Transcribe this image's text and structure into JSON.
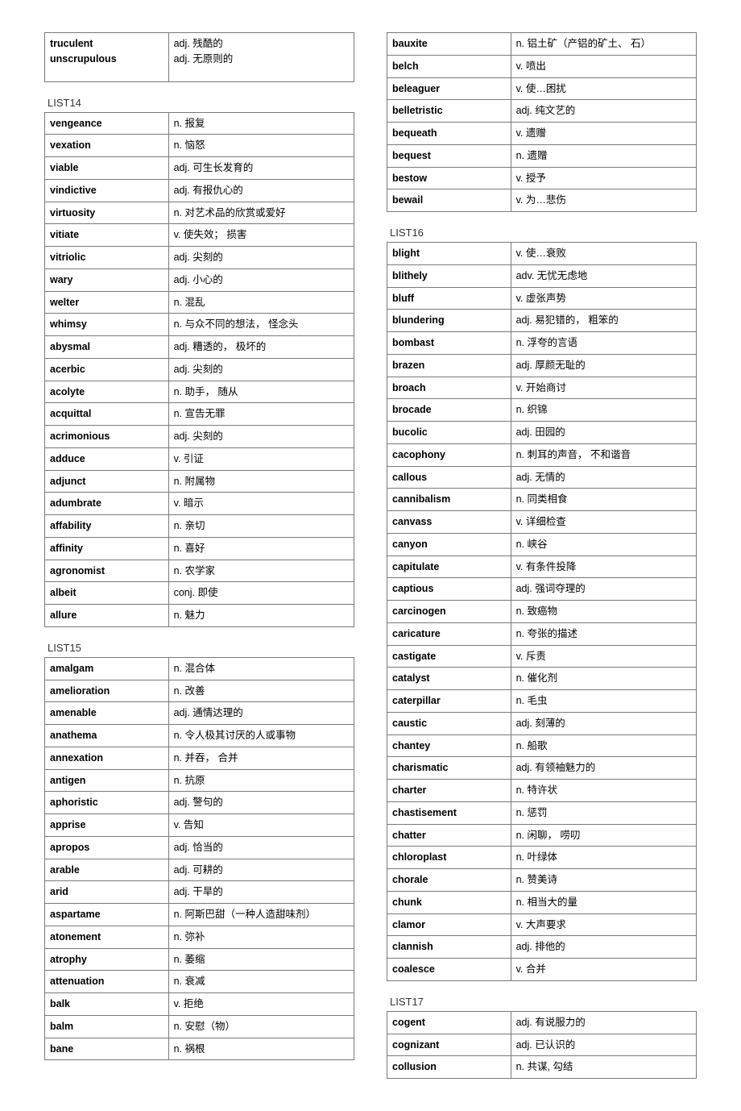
{
  "leftTop": {
    "rows": [
      {
        "word": "truculent",
        "def": "adj.  残酷的"
      },
      {
        "word": "unscrupulous",
        "def": "adj.  无原则的"
      }
    ]
  },
  "list14": {
    "title": "LIST14",
    "rows": [
      {
        "word": "vengeance",
        "def": "n.  报复"
      },
      {
        "word": "vexation",
        "def": "n.  恼怒"
      },
      {
        "word": "viable",
        "def": "adj.  可生长发育的"
      },
      {
        "word": "vindictive",
        "def": "adj.  有报仇心的"
      },
      {
        "word": "virtuosity",
        "def": "n.  对艺术品的欣赏或爱好"
      },
      {
        "word": "vitiate",
        "def": "v.  使失效；  损害"
      },
      {
        "word": "vitriolic",
        "def": "adj.  尖刻的"
      },
      {
        "word": "wary",
        "def": "adj.  小心的"
      },
      {
        "word": "welter",
        "def": "n.  混乱"
      },
      {
        "word": "whimsy",
        "def": "n.  与众不同的想法，  怪念头"
      },
      {
        "word": "abysmal",
        "def": "adj.  糟透的，  极坏的"
      },
      {
        "word": "acerbic",
        "def": "adj.  尖刻的"
      },
      {
        "word": "acolyte",
        "def": "n.  助手，  随从"
      },
      {
        "word": "acquittal",
        "def": "n.  宣告无罪"
      },
      {
        "word": "acrimonious",
        "def": "adj.  尖刻的"
      },
      {
        "word": "adduce",
        "def": "v.  引证"
      },
      {
        "word": "adjunct",
        "def": "n.  附属物"
      },
      {
        "word": "adumbrate",
        "def": "v.  暗示"
      },
      {
        "word": "affability",
        "def": "n.  亲切"
      },
      {
        "word": "affinity",
        "def": "n.  喜好"
      },
      {
        "word": "agronomist",
        "def": "n.  农学家"
      },
      {
        "word": "albeit",
        "def": "conj.  即使"
      },
      {
        "word": "allure",
        "def": "n.  魅力"
      }
    ]
  },
  "list15": {
    "title": "LIST15",
    "rows": [
      {
        "word": "amalgam",
        "def": "n.  混合体"
      },
      {
        "word": "amelioration",
        "def": "n.  改善"
      },
      {
        "word": "amenable",
        "def": "adj.  通情达理的"
      },
      {
        "word": "anathema",
        "def": "n.  令人极其讨厌的人或事物"
      },
      {
        "word": "annexation",
        "def": "n.  并吞，  合并"
      },
      {
        "word": "antigen",
        "def": "n.  抗原"
      },
      {
        "word": "aphoristic",
        "def": "adj.  警句的"
      },
      {
        "word": "apprise",
        "def": "v.  告知"
      },
      {
        "word": "apropos",
        "def": "adj.  恰当的"
      },
      {
        "word": "arable",
        "def": "adj.  可耕的"
      },
      {
        "word": "arid",
        "def": "adj.  干旱的"
      },
      {
        "word": "aspartame",
        "def": "n.  阿斯巴甜（一种人造甜味剂）"
      },
      {
        "word": "atonement",
        "def": "n.  弥补"
      },
      {
        "word": "atrophy",
        "def": "n.  萎缩"
      },
      {
        "word": "attenuation",
        "def": "n.  衰减"
      },
      {
        "word": "balk",
        "def": "v.  拒绝"
      },
      {
        "word": "balm",
        "def": "n.  安慰（物）"
      },
      {
        "word": "bane",
        "def": "n.  祸根"
      }
    ]
  },
  "rightTop": {
    "rows": [
      {
        "word": "bauxite",
        "def": "n.  铝土矿（产铝的矿土、 石）"
      },
      {
        "word": "belch",
        "def": "v.  喷出"
      },
      {
        "word": "beleaguer",
        "def": "v.  使…困扰"
      },
      {
        "word": "belletristic",
        "def": "adj.  纯文艺的"
      },
      {
        "word": "bequeath",
        "def": "v.  遗赠"
      },
      {
        "word": "bequest",
        "def": "n.  遗赠"
      },
      {
        "word": "bestow",
        "def": "v.  授予"
      },
      {
        "word": "bewail",
        "def": "v.  为…悲伤"
      }
    ]
  },
  "list16": {
    "title": "LIST16",
    "rows": [
      {
        "word": "blight",
        "def": "v.  使…衰败"
      },
      {
        "word": "blithely",
        "def": "adv.  无忧无虑地"
      },
      {
        "word": "bluff",
        "def": "v.  虚张声势"
      },
      {
        "word": "blundering",
        "def": "adj.  易犯错的，  粗笨的"
      },
      {
        "word": "bombast",
        "def": "n.  浮夸的言语"
      },
      {
        "word": "brazen",
        "def": "adj.  厚颜无耻的"
      },
      {
        "word": "broach",
        "def": "v.  开始商讨"
      },
      {
        "word": "brocade",
        "def": "n.  织锦"
      },
      {
        "word": "bucolic",
        "def": "adj.  田园的"
      },
      {
        "word": "cacophony",
        "def": "n.  刺耳的声音，  不和谐音"
      },
      {
        "word": "callous",
        "def": "adj.  无情的"
      },
      {
        "word": "cannibalism",
        "def": "n.  同类相食"
      },
      {
        "word": "canvass",
        "def": "v.  详细检查"
      },
      {
        "word": "canyon",
        "def": "n.  峡谷"
      },
      {
        "word": "capitulate",
        "def": "v.  有条件投降"
      },
      {
        "word": "captious",
        "def": "adj.  强词夺理的"
      },
      {
        "word": "carcinogen",
        "def": "n.  致癌物"
      },
      {
        "word": "caricature",
        "def": "n.  夸张的描述"
      },
      {
        "word": "castigate",
        "def": "v.  斥责"
      },
      {
        "word": "catalyst",
        "def": "n.  催化剂"
      },
      {
        "word": "caterpillar",
        "def": "n.  毛虫"
      },
      {
        "word": "caustic",
        "def": "adj.  刻薄的"
      },
      {
        "word": "chantey",
        "def": "n.  船歌"
      },
      {
        "word": "charismatic",
        "def": "adj.  有领袖魅力的"
      },
      {
        "word": "charter",
        "def": "n.  特许状"
      },
      {
        "word": "chastisement",
        "def": "n.  惩罚"
      },
      {
        "word": "chatter",
        "def": "n.  闲聊，  唠叨"
      },
      {
        "word": "chloroplast",
        "def": "n.  叶绿体"
      },
      {
        "word": "chorale",
        "def": "n.  赞美诗"
      },
      {
        "word": "chunk",
        "def": "n.  相当大的量"
      },
      {
        "word": "clamor",
        "def": "v.  大声要求"
      },
      {
        "word": "clannish",
        "def": "adj.  排他的"
      },
      {
        "word": "coalesce",
        "def": "v.  合并"
      }
    ]
  },
  "list17": {
    "title": "LIST17",
    "rows": [
      {
        "word": "cogent",
        "def": "adj.  有说服力的"
      },
      {
        "word": "cognizant",
        "def": "adj.  已认识的"
      },
      {
        "word": "collusion",
        "def": "n.  共谋, 勾结"
      }
    ]
  }
}
